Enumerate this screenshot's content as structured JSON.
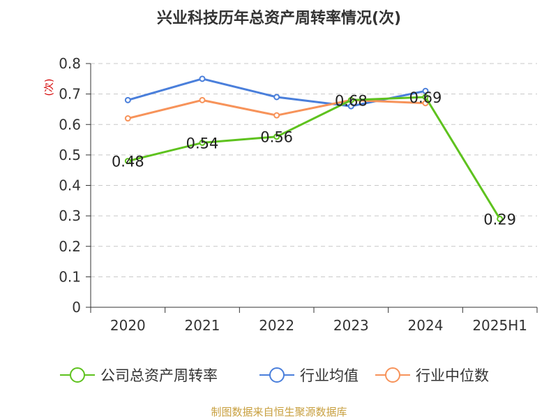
{
  "chart_data": {
    "type": "line",
    "title": "兴业科技历年总资产周转率情况(次)",
    "ylabel": "(次)",
    "xlabel": "",
    "ylim": [
      0,
      0.8
    ],
    "yticks": [
      0,
      0.1,
      0.2,
      0.3,
      0.4,
      0.5,
      0.6,
      0.7,
      0.8
    ],
    "ytick_labels": [
      "0",
      "0.1",
      "0.2",
      "0.3",
      "0.4",
      "0.5",
      "0.6",
      "0.7",
      "0.8"
    ],
    "categories": [
      "2020",
      "2021",
      "2022",
      "2023",
      "2024",
      "2025H1"
    ],
    "grid": "horizontal dashed",
    "legend_position": "bottom",
    "series": [
      {
        "name": "公司总资产周转率",
        "color": "#5ec21e",
        "values": [
          0.48,
          0.54,
          0.56,
          0.68,
          0.69,
          0.29
        ],
        "data_labels": [
          "0.48",
          "0.54",
          "0.56",
          "0.68",
          "0.69",
          "0.29"
        ]
      },
      {
        "name": "行业均值",
        "color": "#4a7fdb",
        "values": [
          0.68,
          0.75,
          0.69,
          0.66,
          0.71,
          null
        ]
      },
      {
        "name": "行业中位数",
        "color": "#f7935a",
        "values": [
          0.62,
          0.68,
          0.63,
          0.68,
          0.67,
          null
        ]
      }
    ],
    "source": "制图数据来自恒生聚源数据库"
  }
}
